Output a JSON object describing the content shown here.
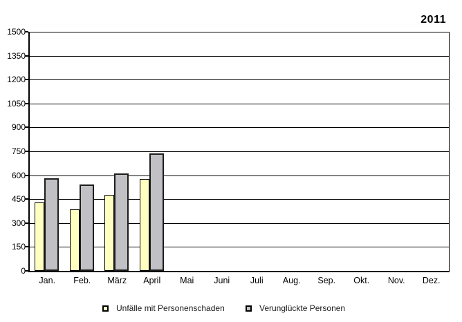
{
  "chart_data": {
    "type": "bar",
    "title": "2011",
    "categories": [
      "Jan.",
      "Feb.",
      "März",
      "April",
      "Mai",
      "Juni",
      "Juli",
      "Aug.",
      "Sep.",
      "Okt.",
      "Nov.",
      "Dez."
    ],
    "series": [
      {
        "name": "Unfälle mit Personenschaden",
        "color": "#FFFFC2",
        "values": [
          430,
          385,
          475,
          575,
          null,
          null,
          null,
          null,
          null,
          null,
          null,
          null
        ]
      },
      {
        "name": "Verunglückte Personen",
        "color": "#C1C1C5",
        "values": [
          580,
          540,
          610,
          735,
          null,
          null,
          null,
          null,
          null,
          null,
          null,
          null
        ]
      }
    ],
    "ylim": [
      0,
      1500
    ],
    "ytick_step": 150,
    "ytick_labels": [
      "1500",
      "1350",
      "1200",
      "1050",
      "900",
      "750",
      "600",
      "450",
      "300",
      "150",
      "0"
    ],
    "grid": true,
    "legend_position": "bottom"
  }
}
